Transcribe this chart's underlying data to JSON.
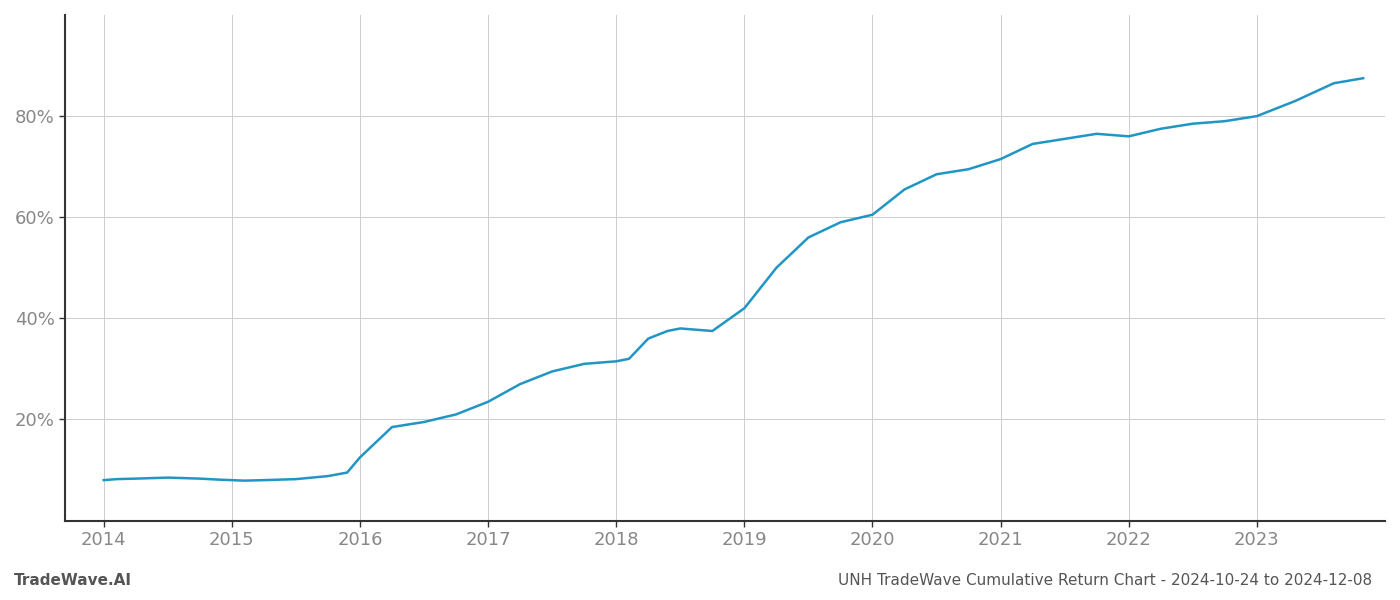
{
  "title": "UNH TradeWave Cumulative Return Chart - 2024-10-24 to 2024-12-08",
  "watermark": "TradeWave.AI",
  "line_color": "#2196c4",
  "background_color": "#ffffff",
  "grid_color": "#cccccc",
  "x_years": [
    2014,
    2015,
    2016,
    2017,
    2018,
    2019,
    2020,
    2021,
    2022,
    2023
  ],
  "data_x": [
    2014.0,
    2014.1,
    2014.25,
    2014.5,
    2014.75,
    2014.9,
    2015.0,
    2015.1,
    2015.25,
    2015.5,
    2015.75,
    2015.9,
    2016.0,
    2016.25,
    2016.5,
    2016.75,
    2017.0,
    2017.25,
    2017.5,
    2017.75,
    2018.0,
    2018.1,
    2018.25,
    2018.4,
    2018.5,
    2018.75,
    2019.0,
    2019.25,
    2019.5,
    2019.75,
    2020.0,
    2020.25,
    2020.5,
    2020.75,
    2021.0,
    2021.25,
    2021.5,
    2021.75,
    2022.0,
    2022.25,
    2022.5,
    2022.75,
    2023.0,
    2023.3,
    2023.6,
    2023.83
  ],
  "data_y": [
    8.0,
    8.2,
    8.3,
    8.5,
    8.3,
    8.1,
    8.0,
    7.9,
    8.0,
    8.2,
    8.8,
    9.5,
    12.5,
    18.5,
    19.5,
    21.0,
    23.5,
    27.0,
    29.5,
    31.0,
    31.5,
    32.0,
    36.0,
    37.5,
    38.0,
    37.5,
    42.0,
    50.0,
    56.0,
    59.0,
    60.5,
    65.5,
    68.5,
    69.5,
    71.5,
    74.5,
    75.5,
    76.5,
    76.0,
    77.5,
    78.5,
    79.0,
    80.0,
    83.0,
    86.5,
    87.5
  ],
  "ylim": [
    0,
    100
  ],
  "yticks": [
    20,
    40,
    60,
    80
  ],
  "xlim": [
    2013.7,
    2024.0
  ],
  "title_fontsize": 11,
  "tick_label_color": "#888888",
  "spine_color": "#333333",
  "title_color": "#555555",
  "watermark_color": "#555555",
  "line_width": 1.8
}
